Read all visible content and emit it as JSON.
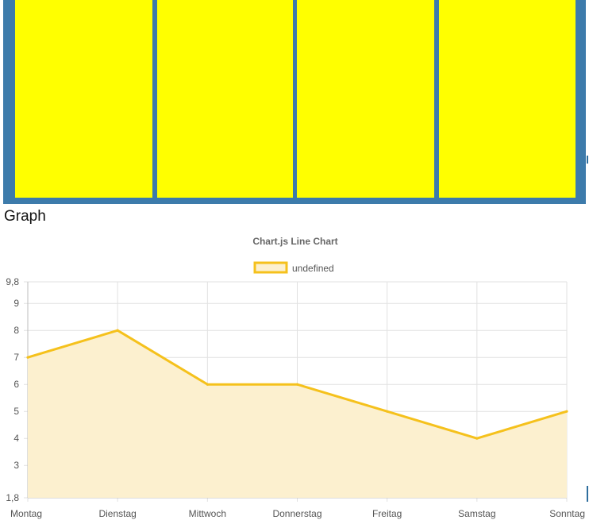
{
  "page": {
    "heading": "Graph"
  },
  "colors": {
    "panel_background": "#3d7bab",
    "card_color": "#ffff00",
    "line_color": "#f5c11c",
    "fill_color": "#fcf0cf"
  },
  "cards": [
    {
      "id": "card-1"
    },
    {
      "id": "card-2"
    },
    {
      "id": "card-3"
    },
    {
      "id": "card-4"
    }
  ],
  "chart_data": {
    "type": "line",
    "title": "Chart.js Line Chart",
    "legend": {
      "position": "top",
      "entries": [
        "undefined"
      ]
    },
    "categories": [
      "Montag",
      "Dienstag",
      "Mittwoch",
      "Donnerstag",
      "Freitag",
      "Samstag",
      "Sonntag"
    ],
    "series": [
      {
        "name": "undefined",
        "values": [
          7,
          8,
          6,
          6,
          5,
          4,
          5
        ],
        "fill": true
      }
    ],
    "ylim": [
      1.8,
      9.8
    ],
    "yticks": [
      "9,8",
      "9",
      "8",
      "7",
      "6",
      "5",
      "4",
      "3",
      "1,8"
    ],
    "grid": true
  }
}
